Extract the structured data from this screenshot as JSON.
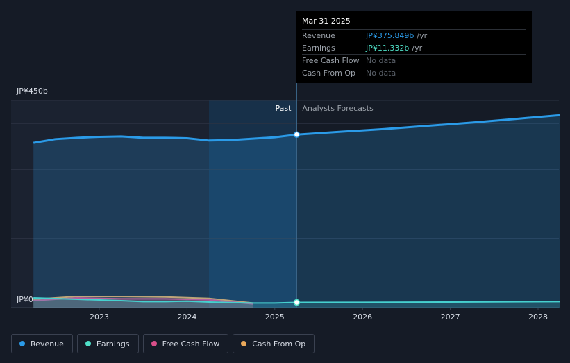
{
  "chart_data": {
    "type": "area",
    "y_axis": {
      "top_label": "JP¥450b",
      "zero_label": "JP¥0",
      "ylim": [
        0,
        450
      ]
    },
    "x_ticks": [
      "2023",
      "2024",
      "2025",
      "2026",
      "2027",
      "2028"
    ],
    "past_label": "Past",
    "forecast_label": "Analysts Forecasts",
    "forecast_start": 2025.25,
    "series": [
      {
        "name": "Revenue",
        "color": "#2b9be8",
        "points": [
          [
            2022.25,
            358
          ],
          [
            2022.5,
            366
          ],
          [
            2022.75,
            369
          ],
          [
            2023.0,
            371
          ],
          [
            2023.25,
            372
          ],
          [
            2023.5,
            369
          ],
          [
            2023.75,
            369
          ],
          [
            2024.0,
            368
          ],
          [
            2024.25,
            363
          ],
          [
            2024.5,
            364
          ],
          [
            2024.75,
            367
          ],
          [
            2025.0,
            370
          ],
          [
            2025.25,
            375.849
          ],
          [
            2025.75,
            382
          ],
          [
            2026.25,
            388
          ],
          [
            2026.75,
            395
          ],
          [
            2027.25,
            402
          ],
          [
            2027.75,
            410
          ],
          [
            2028.25,
            418
          ]
        ]
      },
      {
        "name": "Earnings",
        "color": "#4fe0c8",
        "points": [
          [
            2022.25,
            21
          ],
          [
            2022.75,
            18
          ],
          [
            2023.25,
            15
          ],
          [
            2023.5,
            13
          ],
          [
            2023.75,
            13
          ],
          [
            2024.0,
            14
          ],
          [
            2024.25,
            12
          ],
          [
            2024.5,
            11
          ],
          [
            2024.75,
            10
          ],
          [
            2025.0,
            10
          ],
          [
            2025.25,
            11.332
          ],
          [
            2026.0,
            11.5
          ],
          [
            2027.0,
            12
          ],
          [
            2028.25,
            13
          ]
        ]
      },
      {
        "name": "Free Cash Flow",
        "color": "#d94f8a",
        "points": [
          [
            2022.25,
            15
          ],
          [
            2022.75,
            21
          ],
          [
            2023.25,
            19
          ],
          [
            2023.75,
            19
          ],
          [
            2024.25,
            17
          ],
          [
            2024.75,
            8
          ]
        ]
      },
      {
        "name": "Cash From Op",
        "color": "#e9a85a",
        "points": [
          [
            2022.25,
            18
          ],
          [
            2022.75,
            24
          ],
          [
            2023.25,
            24
          ],
          [
            2023.75,
            23
          ],
          [
            2024.25,
            20
          ],
          [
            2024.75,
            10
          ]
        ]
      }
    ]
  },
  "tooltip": {
    "date": "Mar 31 2025",
    "rows": [
      {
        "label": "Revenue",
        "value": "JP¥375.849b",
        "unit": "/yr"
      },
      {
        "label": "Earnings",
        "value": "JP¥11.332b",
        "unit": "/yr"
      },
      {
        "label": "Free Cash Flow",
        "value": "No data",
        "unit": ""
      },
      {
        "label": "Cash From Op",
        "value": "No data",
        "unit": ""
      }
    ]
  },
  "legend": [
    "Revenue",
    "Earnings",
    "Free Cash Flow",
    "Cash From Op"
  ]
}
